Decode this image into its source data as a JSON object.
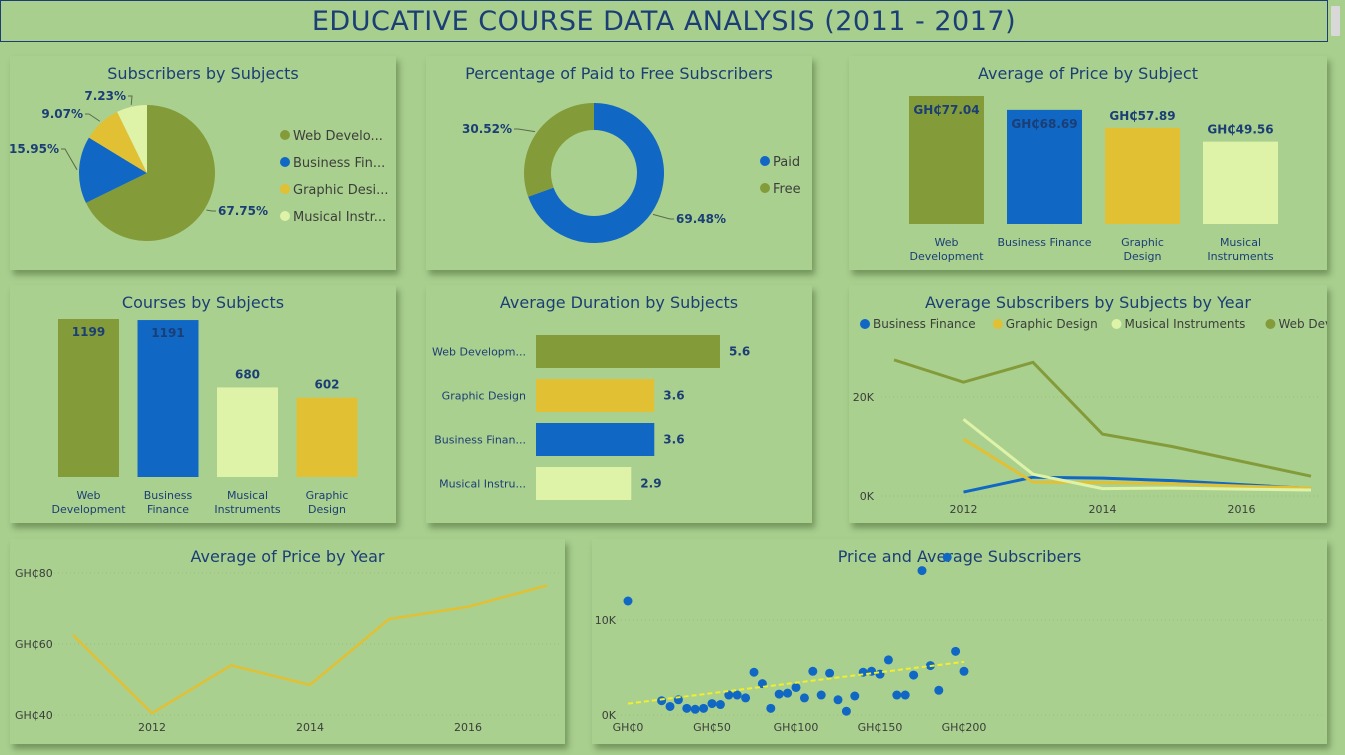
{
  "header": {
    "title": "EDUCATIVE COURSE DATA ANALYSIS (2011 - 2017)"
  },
  "colors": {
    "web": "#849b3a",
    "business": "#1067c4",
    "graphic": "#e1c033",
    "musical": "#def2a8",
    "text": "#1b3e75",
    "trend": "#f2ee2e"
  },
  "chart_data": [
    {
      "id": "subscribers_by_subjects",
      "type": "pie",
      "title": "Subscribers by Subjects",
      "legend": [
        "Web Develo...",
        "Business Fin...",
        "Graphic Desi...",
        "Musical Instr..."
      ],
      "labels": [
        "Web Development",
        "Business Finance",
        "Graphic Design",
        "Musical Instruments"
      ],
      "values": [
        67.75,
        15.95,
        9.07,
        7.23
      ],
      "value_labels": [
        "67.75%",
        "15.95%",
        "9.07%",
        "7.23%"
      ]
    },
    {
      "id": "paid_vs_free",
      "type": "pie",
      "title": "Percentage of Paid to Free Subscribers",
      "labels": [
        "Paid",
        "Free"
      ],
      "values": [
        69.48,
        30.52
      ],
      "value_labels": [
        "69.48%",
        "30.52%"
      ]
    },
    {
      "id": "avg_price_by_subject",
      "type": "bar",
      "title": "Average of Price by Subject",
      "categories": [
        "Web Development",
        "Business Finance",
        "Graphic Design",
        "Musical Instruments"
      ],
      "values": [
        77.04,
        68.69,
        57.89,
        49.56
      ],
      "value_labels": [
        "GH₵77.04",
        "GH₵68.69",
        "GH₵57.89",
        "GH₵49.56"
      ]
    },
    {
      "id": "courses_by_subjects",
      "type": "bar",
      "title": "Courses by Subjects",
      "categories": [
        "Web Development",
        "Business Finance",
        "Musical Instruments",
        "Graphic Design"
      ],
      "values": [
        1199,
        1191,
        680,
        602
      ],
      "value_labels": [
        "1199",
        "1191",
        "680",
        "602"
      ]
    },
    {
      "id": "avg_duration_by_subjects",
      "type": "bar",
      "title": "Average Duration by Subjects",
      "categories": [
        "Web Developm...",
        "Graphic Design",
        "Business Finan...",
        "Musical Instru..."
      ],
      "values": [
        5.6,
        3.6,
        3.6,
        2.9
      ],
      "value_labels": [
        "5.6",
        "3.6",
        "3.6",
        "2.9"
      ]
    },
    {
      "id": "avg_subscribers_by_year",
      "type": "line",
      "title": "Average Subscribers by Subjects by Year",
      "x": [
        2011,
        2012,
        2013,
        2014,
        2015,
        2016,
        2017
      ],
      "series": [
        {
          "name": "Business Finance",
          "values": [
            null,
            800,
            3800,
            3600,
            3100,
            2300,
            1500
          ]
        },
        {
          "name": "Graphic Design",
          "values": [
            null,
            11500,
            2800,
            2700,
            2500,
            2000,
            1600
          ]
        },
        {
          "name": "Musical Instruments",
          "values": [
            null,
            15500,
            4400,
            1500,
            1600,
            1400,
            1200
          ]
        },
        {
          "name": "Web Development",
          "values": [
            27500,
            23000,
            27000,
            12500,
            10000,
            7000,
            4000
          ]
        }
      ],
      "y_ticks": [
        "20K",
        "0K"
      ],
      "x_ticks": [
        "2012",
        "2014",
        "2016"
      ]
    },
    {
      "id": "avg_price_by_year",
      "type": "line",
      "title": "Average of Price by Year",
      "x": [
        2011,
        2012,
        2013,
        2014,
        2015,
        2016,
        2017
      ],
      "series": [
        {
          "name": "",
          "values": [
            62.5,
            40.5,
            54,
            48.5,
            67,
            70.5,
            76.5
          ]
        }
      ],
      "y_ticks": [
        "GH₵80",
        "GH₵60",
        "GH₵40"
      ],
      "x_ticks": [
        "2012",
        "2014",
        "2016"
      ]
    },
    {
      "id": "price_vs_avg_subscribers",
      "type": "scatter",
      "title": "Price and Average Subscribers",
      "x": [
        0,
        20,
        25,
        30,
        35,
        40,
        45,
        50,
        55,
        60,
        65,
        70,
        75,
        80,
        85,
        90,
        95,
        100,
        105,
        110,
        115,
        120,
        125,
        130,
        135,
        140,
        145,
        150,
        155,
        160,
        165,
        170,
        175,
        180,
        185,
        190,
        195,
        200
      ],
      "y": [
        12000,
        1500,
        900,
        1600,
        700,
        600,
        700,
        1200,
        1100,
        2100,
        2100,
        1800,
        4500,
        3300,
        700,
        2200,
        2300,
        2900,
        1800,
        4600,
        2100,
        4400,
        1600,
        400,
        2000,
        4500,
        4600,
        4300,
        5800,
        2100,
        2100,
        4200,
        15200,
        5200,
        2600,
        16600,
        6700,
        4600
      ],
      "trend": [
        [
          0,
          1200
        ],
        [
          200,
          5600
        ]
      ],
      "y_ticks": [
        "10K",
        "0K"
      ],
      "x_ticks": [
        "GH₵0",
        "GH₵50",
        "GH₵100",
        "GH₵150",
        "GH₵200"
      ]
    }
  ]
}
